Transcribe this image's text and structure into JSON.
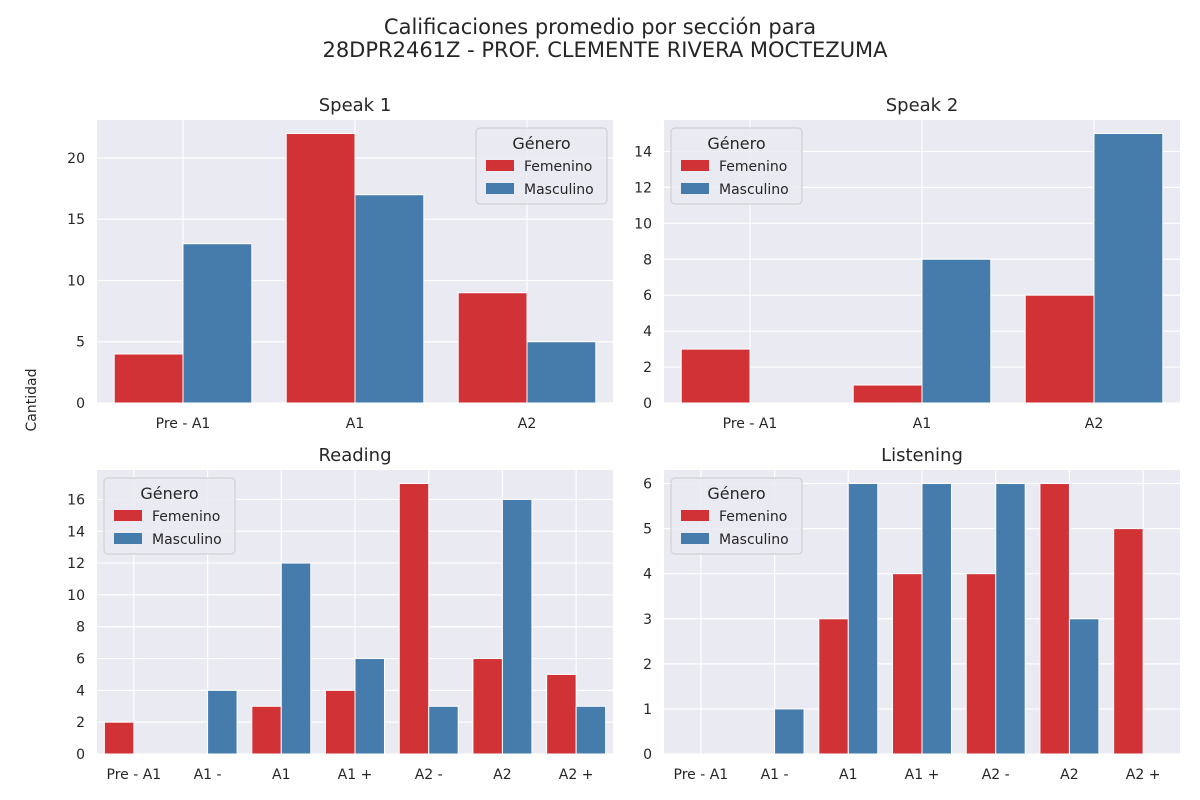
{
  "figure": {
    "title_line1": "Calificaciones promedio por sección para",
    "title_line2": "28DPR2461Z - PROF. CLEMENTE RIVERA MOCTEZUMA",
    "ylabel": "Cantidad"
  },
  "legend": {
    "title": "Género",
    "entries": [
      "Femenino",
      "Masculino"
    ]
  },
  "colors": {
    "femenino": "#d03235",
    "masculino": "#467cab",
    "plot_bg": "#eaeaf2",
    "grid": "#ffffff"
  },
  "chart_data": [
    {
      "type": "bar",
      "title": "Speak 1",
      "categories": [
        "Pre - A1",
        "A1",
        "A2"
      ],
      "series": [
        {
          "name": "Femenino",
          "values": [
            4,
            22,
            9
          ]
        },
        {
          "name": "Masculino",
          "values": [
            13,
            17,
            5
          ]
        }
      ],
      "ylim": [
        0,
        23.1
      ],
      "yticks": [
        0,
        5,
        10,
        15,
        20
      ],
      "grid": true,
      "legend_position": "top-right"
    },
    {
      "type": "bar",
      "title": "Speak 2",
      "categories": [
        "Pre - A1",
        "A1",
        "A2"
      ],
      "series": [
        {
          "name": "Femenino",
          "values": [
            3,
            1,
            6
          ]
        },
        {
          "name": "Masculino",
          "values": [
            0,
            8,
            15
          ]
        }
      ],
      "ylim": [
        0,
        15.75
      ],
      "yticks": [
        0,
        2,
        4,
        6,
        8,
        10,
        12,
        14
      ],
      "grid": true,
      "legend_position": "top-left"
    },
    {
      "type": "bar",
      "title": "Reading",
      "categories": [
        "Pre - A1",
        "A1 -",
        "A1",
        "A1 +",
        "A2 -",
        "A2",
        "A2 +"
      ],
      "series": [
        {
          "name": "Femenino",
          "values": [
            2,
            0,
            3,
            4,
            17,
            6,
            5
          ]
        },
        {
          "name": "Masculino",
          "values": [
            0,
            4,
            12,
            6,
            3,
            16,
            3
          ]
        }
      ],
      "ylim": [
        0,
        17.85
      ],
      "yticks": [
        0,
        2,
        4,
        6,
        8,
        10,
        12,
        14,
        16
      ],
      "grid": true,
      "legend_position": "top-left"
    },
    {
      "type": "bar",
      "title": "Listening",
      "categories": [
        "Pre - A1",
        "A1 -",
        "A1",
        "A1 +",
        "A2 -",
        "A2",
        "A2 +"
      ],
      "series": [
        {
          "name": "Femenino",
          "values": [
            0,
            0,
            3,
            4,
            4,
            6,
            5
          ]
        },
        {
          "name": "Masculino",
          "values": [
            0,
            1,
            6,
            6,
            6,
            3,
            0
          ]
        }
      ],
      "ylim": [
        0,
        6.3
      ],
      "yticks": [
        0,
        1,
        2,
        3,
        4,
        5,
        6
      ],
      "grid": true,
      "legend_position": "top-left"
    }
  ]
}
